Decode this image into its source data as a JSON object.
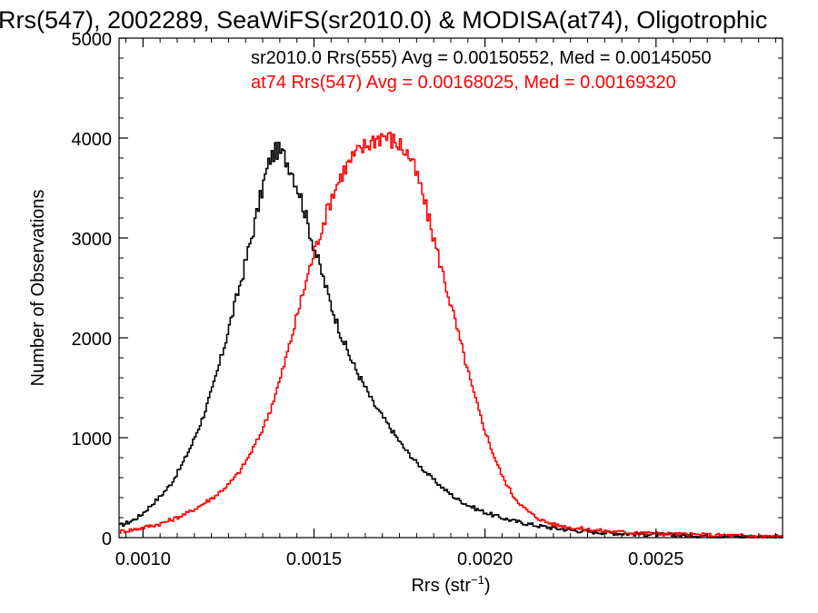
{
  "chart_data": {
    "type": "histogram",
    "title": "Rrs(547), 2002289, SeaWiFS(sr2010.0) & MODISA(at74), Oligotrophic",
    "xlabel": "Rrs (str",
    "xlabel_sup": "−1",
    "xlabel_close": ")",
    "ylabel": "Number of Observations",
    "xlim": [
      0.00093,
      0.00287
    ],
    "ylim": [
      0,
      5000
    ],
    "xticks": [
      0.001,
      0.0015,
      0.002,
      0.0025
    ],
    "xtick_labels": [
      "0.0010",
      "0.0015",
      "0.0020",
      "0.0025"
    ],
    "yticks": [
      0,
      1000,
      2000,
      3000,
      4000,
      5000
    ],
    "ytick_labels": [
      "0",
      "1000",
      "2000",
      "3000",
      "4000",
      "5000"
    ],
    "grid": false,
    "annotations": [
      {
        "text": "sr2010.0 Rrs(555) Avg = 0.00150552, Med = 0.00145050",
        "color": "#000000"
      },
      {
        "text": "at74 Rrs(547) Avg = 0.00168025, Med = 0.00169320",
        "color": "#ff0000"
      }
    ],
    "series": [
      {
        "color": "#000000",
        "points": [
          [
            0.00093,
            120
          ],
          [
            0.00096,
            160
          ],
          [
            0.00099,
            220
          ],
          [
            0.00102,
            320
          ],
          [
            0.00105,
            420
          ],
          [
            0.00108,
            540
          ],
          [
            0.00111,
            720
          ],
          [
            0.00114,
            930
          ],
          [
            0.00117,
            1180
          ],
          [
            0.0012,
            1480
          ],
          [
            0.00123,
            1850
          ],
          [
            0.00126,
            2250
          ],
          [
            0.00129,
            2650
          ],
          [
            0.00132,
            3080
          ],
          [
            0.00135,
            3550
          ],
          [
            0.00137,
            3800
          ],
          [
            0.00139,
            3880
          ],
          [
            0.00141,
            3820
          ],
          [
            0.00143,
            3700
          ],
          [
            0.00146,
            3400
          ],
          [
            0.00149,
            3000
          ],
          [
            0.00152,
            2650
          ],
          [
            0.00155,
            2300
          ],
          [
            0.00158,
            2000
          ],
          [
            0.00161,
            1750
          ],
          [
            0.00164,
            1550
          ],
          [
            0.00167,
            1350
          ],
          [
            0.0017,
            1200
          ],
          [
            0.00173,
            1050
          ],
          [
            0.00176,
            900
          ],
          [
            0.00179,
            780
          ],
          [
            0.00182,
            670
          ],
          [
            0.00185,
            570
          ],
          [
            0.00188,
            480
          ],
          [
            0.00191,
            400
          ],
          [
            0.00194,
            340
          ],
          [
            0.00197,
            290
          ],
          [
            0.002,
            250
          ],
          [
            0.00203,
            215
          ],
          [
            0.00206,
            185
          ],
          [
            0.00209,
            160
          ],
          [
            0.00212,
            140
          ],
          [
            0.00215,
            120
          ],
          [
            0.0022,
            95
          ],
          [
            0.00225,
            75
          ],
          [
            0.0023,
            60
          ],
          [
            0.00235,
            50
          ],
          [
            0.0024,
            40
          ],
          [
            0.0025,
            30
          ],
          [
            0.0026,
            22
          ],
          [
            0.0027,
            15
          ],
          [
            0.0028,
            10
          ],
          [
            0.00287,
            8
          ]
        ]
      },
      {
        "color": "#ff0000",
        "points": [
          [
            0.00093,
            60
          ],
          [
            0.00097,
            80
          ],
          [
            0.00101,
            110
          ],
          [
            0.00105,
            140
          ],
          [
            0.00109,
            190
          ],
          [
            0.00113,
            250
          ],
          [
            0.00117,
            330
          ],
          [
            0.00121,
            420
          ],
          [
            0.00125,
            540
          ],
          [
            0.00128,
            660
          ],
          [
            0.00131,
            830
          ],
          [
            0.00134,
            1030
          ],
          [
            0.00137,
            1280
          ],
          [
            0.0014,
            1600
          ],
          [
            0.00143,
            1980
          ],
          [
            0.00146,
            2380
          ],
          [
            0.00149,
            2760
          ],
          [
            0.00152,
            3100
          ],
          [
            0.00155,
            3420
          ],
          [
            0.00158,
            3650
          ],
          [
            0.00161,
            3800
          ],
          [
            0.00164,
            3900
          ],
          [
            0.00167,
            3980
          ],
          [
            0.0017,
            4030
          ],
          [
            0.00172,
            3990
          ],
          [
            0.00175,
            3930
          ],
          [
            0.00178,
            3800
          ],
          [
            0.00181,
            3500
          ],
          [
            0.00184,
            3100
          ],
          [
            0.00187,
            2700
          ],
          [
            0.0019,
            2300
          ],
          [
            0.00193,
            1900
          ],
          [
            0.00196,
            1500
          ],
          [
            0.00199,
            1150
          ],
          [
            0.00202,
            850
          ],
          [
            0.00205,
            600
          ],
          [
            0.00208,
            420
          ],
          [
            0.00211,
            300
          ],
          [
            0.00214,
            220
          ],
          [
            0.00217,
            165
          ],
          [
            0.0022,
            130
          ],
          [
            0.00225,
            100
          ],
          [
            0.0023,
            80
          ],
          [
            0.00235,
            65
          ],
          [
            0.0024,
            55
          ],
          [
            0.0025,
            40
          ],
          [
            0.0026,
            30
          ],
          [
            0.0027,
            22
          ],
          [
            0.0028,
            15
          ],
          [
            0.00287,
            12
          ]
        ]
      }
    ]
  }
}
